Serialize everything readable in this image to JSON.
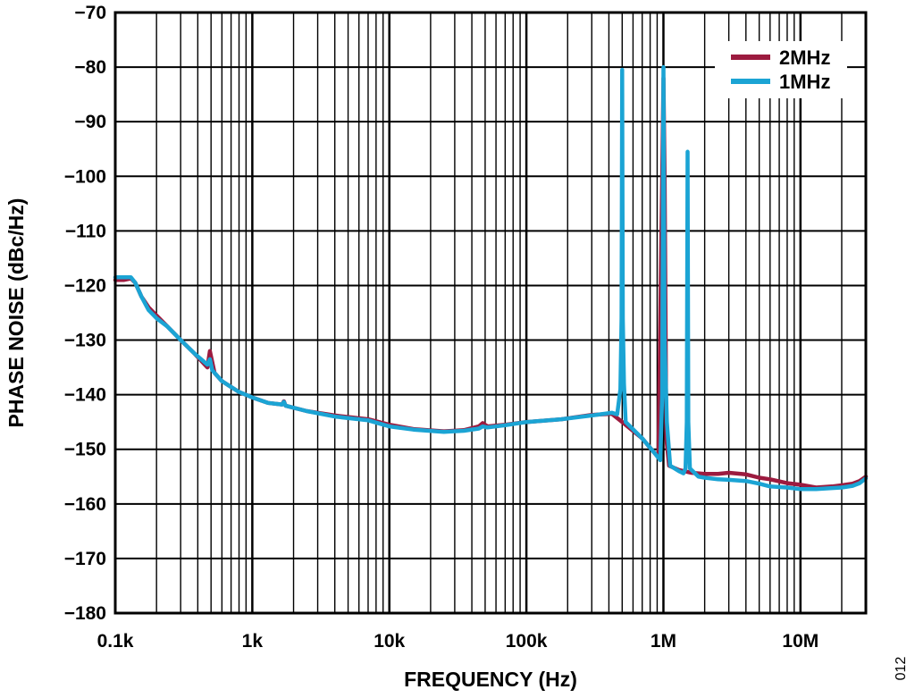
{
  "chart_data": {
    "type": "line",
    "title": "",
    "xlabel": "FREQUENCY (Hz)",
    "ylabel": "PHASE NOISE (dBc/Hz)",
    "xscale": "log",
    "xlim": [
      100,
      30000000
    ],
    "ylim": [
      -180,
      -70
    ],
    "grid": true,
    "legend_position": "top-right",
    "x_ticks": [
      {
        "value": 100,
        "label": "0.1k"
      },
      {
        "value": 1000,
        "label": "1k"
      },
      {
        "value": 10000,
        "label": "10k"
      },
      {
        "value": 100000,
        "label": "100k"
      },
      {
        "value": 1000000,
        "label": "1M"
      },
      {
        "value": 10000000,
        "label": "10M"
      }
    ],
    "y_ticks": [
      {
        "value": -70,
        "label": "−70"
      },
      {
        "value": -80,
        "label": "−80"
      },
      {
        "value": -90,
        "label": "−90"
      },
      {
        "value": -100,
        "label": "−100"
      },
      {
        "value": -110,
        "label": "−110"
      },
      {
        "value": -120,
        "label": "−120"
      },
      {
        "value": -130,
        "label": "−130"
      },
      {
        "value": -140,
        "label": "−140"
      },
      {
        "value": -150,
        "label": "−150"
      },
      {
        "value": -160,
        "label": "−160"
      },
      {
        "value": -170,
        "label": "−170"
      },
      {
        "value": -180,
        "label": "−180"
      }
    ],
    "series": [
      {
        "name": "2MHz",
        "color": "#9c1b3f",
        "points": [
          [
            100,
            -119
          ],
          [
            115,
            -119
          ],
          [
            130,
            -118.7
          ],
          [
            140,
            -119.5
          ],
          [
            155,
            -122
          ],
          [
            175,
            -124
          ],
          [
            200,
            -125.5
          ],
          [
            240,
            -127.5
          ],
          [
            300,
            -130
          ],
          [
            380,
            -132.5
          ],
          [
            470,
            -135
          ],
          [
            490,
            -132
          ],
          [
            510,
            -134
          ],
          [
            530,
            -136
          ],
          [
            600,
            -137.5
          ],
          [
            800,
            -139.5
          ],
          [
            1000,
            -140.5
          ],
          [
            1300,
            -141.5
          ],
          [
            1650,
            -141.8
          ],
          [
            1700,
            -141.2
          ],
          [
            1750,
            -142
          ],
          [
            2500,
            -143
          ],
          [
            4000,
            -143.8
          ],
          [
            7000,
            -144.5
          ],
          [
            10000,
            -145.5
          ],
          [
            15000,
            -146.3
          ],
          [
            25000,
            -146.7
          ],
          [
            35000,
            -146.5
          ],
          [
            45000,
            -145.8
          ],
          [
            48000,
            -145.2
          ],
          [
            52000,
            -145.8
          ],
          [
            70000,
            -145.5
          ],
          [
            100000,
            -145
          ],
          [
            180000,
            -144.5
          ],
          [
            300000,
            -143.7
          ],
          [
            420000,
            -143.5
          ],
          [
            500000,
            -145
          ],
          [
            700000,
            -148
          ],
          [
            850000,
            -150.5
          ],
          [
            920000,
            -151.5
          ],
          [
            980000,
            -100
          ],
          [
            1000000,
            -82
          ],
          [
            1020000,
            -100
          ],
          [
            1050000,
            -148
          ],
          [
            1100000,
            -153
          ],
          [
            1300000,
            -153.8
          ],
          [
            1600000,
            -154.3
          ],
          [
            2000000,
            -154.5
          ],
          [
            2500000,
            -154.5
          ],
          [
            3000000,
            -154.3
          ],
          [
            4000000,
            -154.6
          ],
          [
            5000000,
            -155.2
          ],
          [
            6000000,
            -155.5
          ],
          [
            8000000,
            -156.2
          ],
          [
            10000000,
            -156.5
          ],
          [
            13000000,
            -157
          ],
          [
            17000000,
            -156.8
          ],
          [
            20000000,
            -156.6
          ],
          [
            24000000,
            -156.3
          ],
          [
            27000000,
            -155.8
          ],
          [
            30000000,
            -155
          ]
        ]
      },
      {
        "name": "1MHz",
        "color": "#1ba4d4",
        "points": [
          [
            100,
            -118.5
          ],
          [
            115,
            -118.5
          ],
          [
            130,
            -118.5
          ],
          [
            140,
            -119.5
          ],
          [
            155,
            -122
          ],
          [
            175,
            -124.5
          ],
          [
            200,
            -126
          ],
          [
            240,
            -127.5
          ],
          [
            300,
            -130
          ],
          [
            380,
            -132.5
          ],
          [
            470,
            -134.5
          ],
          [
            490,
            -133.5
          ],
          [
            510,
            -135.5
          ],
          [
            530,
            -136
          ],
          [
            600,
            -137.5
          ],
          [
            800,
            -139.5
          ],
          [
            1000,
            -140.5
          ],
          [
            1300,
            -141.5
          ],
          [
            1650,
            -141.8
          ],
          [
            1700,
            -141.3
          ],
          [
            1750,
            -142
          ],
          [
            2500,
            -143
          ],
          [
            4000,
            -144
          ],
          [
            7000,
            -144.7
          ],
          [
            10000,
            -145.8
          ],
          [
            15000,
            -146.4
          ],
          [
            25000,
            -146.8
          ],
          [
            35000,
            -146.6
          ],
          [
            45000,
            -146.2
          ],
          [
            48000,
            -145.8
          ],
          [
            52000,
            -146
          ],
          [
            70000,
            -145.6
          ],
          [
            100000,
            -145
          ],
          [
            180000,
            -144.5
          ],
          [
            300000,
            -143.8
          ],
          [
            420000,
            -143.3
          ],
          [
            460000,
            -143.6
          ],
          [
            485000,
            -139
          ],
          [
            495000,
            -126
          ],
          [
            500000,
            -80.5
          ],
          [
            505000,
            -126
          ],
          [
            515000,
            -138
          ],
          [
            530000,
            -145
          ],
          [
            700000,
            -148
          ],
          [
            850000,
            -150.5
          ],
          [
            950000,
            -152
          ],
          [
            980000,
            -140
          ],
          [
            1000000,
            -80
          ],
          [
            1020000,
            -130
          ],
          [
            1060000,
            -145
          ],
          [
            1120000,
            -153
          ],
          [
            1300000,
            -154
          ],
          [
            1400000,
            -154.4
          ],
          [
            1450000,
            -153.5
          ],
          [
            1480000,
            -145
          ],
          [
            1500000,
            -95.5
          ],
          [
            1520000,
            -145
          ],
          [
            1560000,
            -153.5
          ],
          [
            1800000,
            -155
          ],
          [
            2000000,
            -155.2
          ],
          [
            2500000,
            -155.5
          ],
          [
            3000000,
            -155.6
          ],
          [
            4000000,
            -155.8
          ],
          [
            5000000,
            -156.3
          ],
          [
            6000000,
            -156.8
          ],
          [
            8000000,
            -157
          ],
          [
            10000000,
            -157.3
          ],
          [
            13000000,
            -157.3
          ],
          [
            17000000,
            -157.1
          ],
          [
            20000000,
            -157
          ],
          [
            24000000,
            -156.7
          ],
          [
            27000000,
            -156.2
          ],
          [
            30000000,
            -155.3
          ]
        ]
      }
    ]
  },
  "figure_id": "012"
}
